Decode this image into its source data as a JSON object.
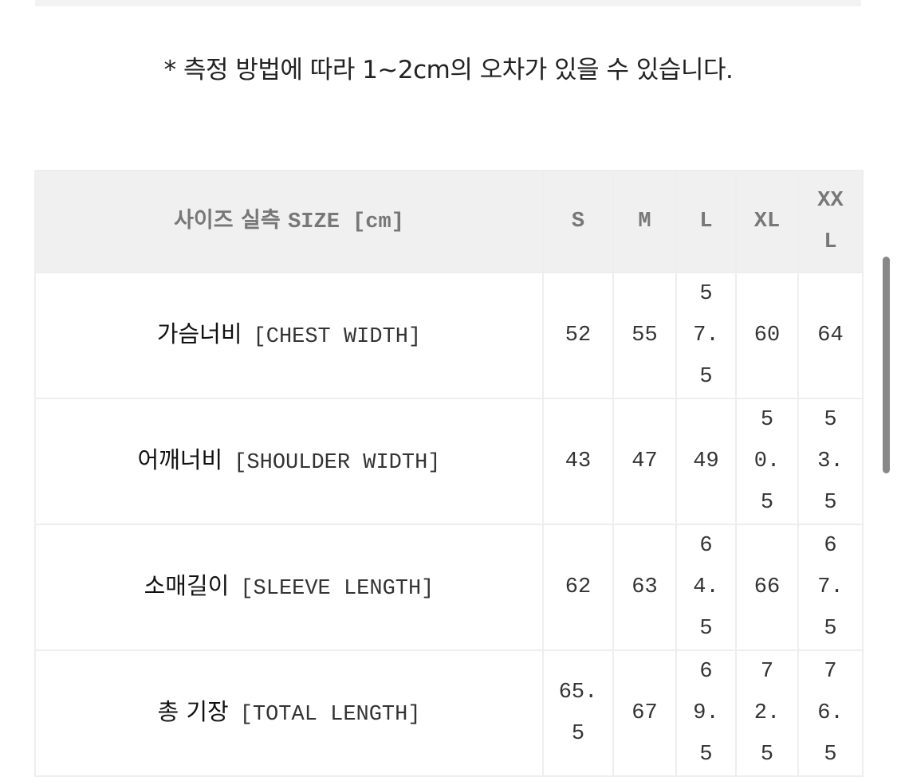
{
  "note": "* 측정 방법에 따라 1~2cm의 오차가 있을 수 있습니다.",
  "table": {
    "header": {
      "ko": "사이즈 실측",
      "en": "SIZE [cm]",
      "sizes": [
        "S",
        "M",
        "L",
        "XL",
        "XXL"
      ]
    },
    "rows": [
      {
        "ko": "가슴너비",
        "en": "[CHEST WIDTH]",
        "values": [
          "52",
          "55",
          "57.5",
          "60",
          "64"
        ]
      },
      {
        "ko": "어깨너비",
        "en": "[SHOULDER WIDTH]",
        "values": [
          "43",
          "47",
          "49",
          "50.5",
          "53.5"
        ]
      },
      {
        "ko": "소매길이",
        "en": "[SLEEVE LENGTH]",
        "values": [
          "62",
          "63",
          "64.5",
          "66",
          "67.5"
        ]
      },
      {
        "ko": "총 기장",
        "en": "[TOTAL LENGTH]",
        "values": [
          "65.5",
          "67",
          "69.5",
          "72.5",
          "76.5"
        ]
      }
    ]
  },
  "colors": {
    "header_bg": "#f0f0f0",
    "border": "#eeeeee",
    "scrollbar": "#888888"
  }
}
